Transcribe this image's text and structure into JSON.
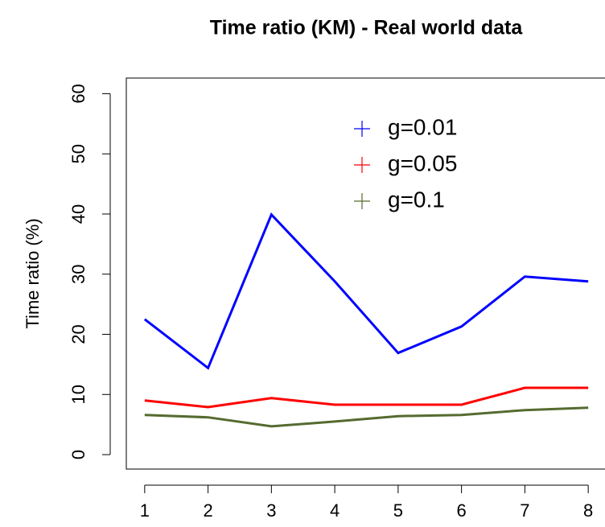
{
  "chart_data": {
    "type": "line",
    "title": "Time ratio (KM) - Real world data",
    "y_label": "Time ratio (%)",
    "x": [
      1,
      2,
      3,
      4,
      5,
      6,
      7,
      8
    ],
    "series": [
      {
        "name": "g=0.01",
        "color": "#0000ff",
        "values": [
          22.5,
          14.4,
          39.9,
          28.8,
          16.9,
          21.3,
          29.6,
          28.8
        ]
      },
      {
        "name": "g=0.05",
        "color": "#ff0000",
        "values": [
          9.0,
          7.9,
          9.4,
          8.3,
          8.3,
          8.3,
          11.1,
          11.1
        ]
      },
      {
        "name": "g=0.1",
        "color": "#556b2f",
        "values": [
          6.6,
          6.2,
          4.7,
          5.5,
          6.4,
          6.6,
          7.4,
          7.8
        ]
      }
    ],
    "xlim": [
      0.71,
      8.29
    ],
    "ylim": [
      -2.4,
      62.6
    ],
    "xticks": [
      1,
      2,
      3,
      4,
      5,
      6,
      7,
      8
    ],
    "yticks": [
      0,
      10,
      20,
      30,
      40,
      50,
      60
    ],
    "legend_position": "top"
  }
}
